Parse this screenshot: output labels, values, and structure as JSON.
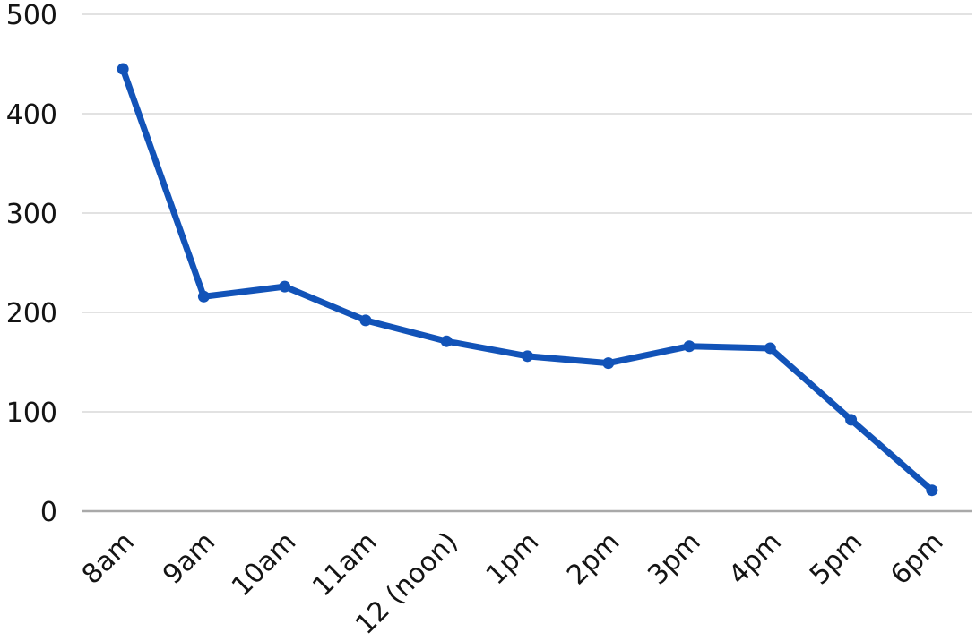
{
  "chart_data": {
    "type": "line",
    "title": "",
    "xlabel": "",
    "ylabel": "",
    "categories": [
      "8am",
      "9am",
      "10am",
      "11am",
      "12 (noon)",
      "1pm",
      "2pm",
      "3pm",
      "4pm",
      "5pm",
      "6pm"
    ],
    "values": [
      445,
      216,
      226,
      192,
      171,
      156,
      149,
      166,
      164,
      92,
      21
    ],
    "ylim": [
      0,
      500
    ],
    "y_ticks": [
      0,
      100,
      200,
      300,
      400,
      500
    ],
    "grid": true,
    "legend": false,
    "x_label_rotation": -45,
    "marker": "circle",
    "colors": {
      "line": "#1253b8",
      "marker": "#1253b8",
      "gridline": "#d9d9d9",
      "axis": "#a9a9a9",
      "label": "#141414",
      "background": "#ffffff"
    }
  }
}
